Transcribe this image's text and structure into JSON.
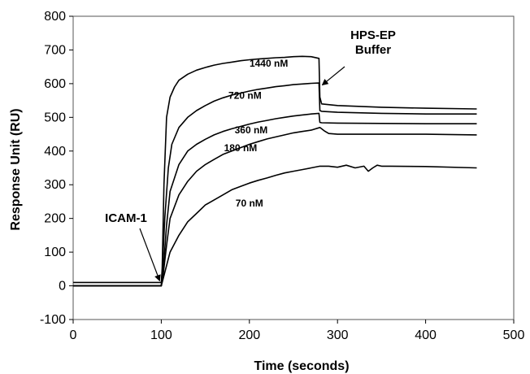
{
  "chart_data": {
    "type": "line",
    "title": "",
    "xlabel": "Time (seconds)",
    "ylabel": "Response Unit (RU)",
    "xlim": [
      0,
      500
    ],
    "ylim": [
      -100,
      800
    ],
    "xticks": [
      0,
      100,
      200,
      300,
      400,
      500
    ],
    "yticks": [
      -100,
      0,
      100,
      200,
      300,
      400,
      500,
      600,
      700,
      800
    ],
    "grid": false,
    "legend": "none",
    "line_color": "#000000",
    "series": [
      {
        "name": "1440 nM",
        "x": [
          0,
          100,
          101,
          103,
          106,
          110,
          115,
          120,
          130,
          140,
          150,
          160,
          170,
          180,
          190,
          200,
          210,
          220,
          230,
          240,
          250,
          260,
          270,
          279,
          280,
          282,
          300,
          350,
          400,
          458
        ],
        "y": [
          10,
          10,
          50,
          300,
          500,
          560,
          590,
          610,
          628,
          640,
          648,
          655,
          660,
          664,
          668,
          671,
          673,
          675,
          677,
          678,
          680,
          681,
          680,
          675,
          560,
          540,
          535,
          530,
          527,
          525
        ]
      },
      {
        "name": "720 nM",
        "x": [
          0,
          100,
          101,
          104,
          108,
          112,
          120,
          130,
          140,
          150,
          160,
          170,
          180,
          190,
          200,
          210,
          220,
          230,
          240,
          250,
          260,
          270,
          279,
          280,
          282,
          300,
          350,
          400,
          458
        ],
        "y": [
          0,
          0,
          40,
          200,
          350,
          420,
          470,
          500,
          520,
          535,
          548,
          558,
          566,
          572,
          578,
          583,
          587,
          591,
          594,
          597,
          599,
          601,
          602,
          520,
          518,
          515,
          512,
          510,
          510
        ]
      },
      {
        "name": "360 nM",
        "x": [
          0,
          100,
          102,
          106,
          110,
          120,
          130,
          140,
          150,
          160,
          170,
          180,
          190,
          200,
          210,
          220,
          230,
          240,
          250,
          260,
          270,
          279,
          280,
          282,
          300,
          350,
          400,
          458
        ],
        "y": [
          0,
          0,
          40,
          180,
          280,
          360,
          400,
          420,
          435,
          448,
          458,
          466,
          473,
          480,
          486,
          491,
          496,
          500,
          504,
          507,
          510,
          512,
          485,
          484,
          483,
          482,
          481,
          481
        ]
      },
      {
        "name": "180 nM",
        "x": [
          0,
          100,
          102,
          106,
          110,
          120,
          130,
          140,
          150,
          160,
          170,
          180,
          190,
          200,
          210,
          220,
          230,
          240,
          250,
          260,
          270,
          280,
          285,
          290,
          300,
          350,
          400,
          458
        ],
        "y": [
          0,
          0,
          30,
          120,
          200,
          270,
          310,
          340,
          360,
          375,
          390,
          400,
          410,
          420,
          428,
          436,
          442,
          448,
          454,
          458,
          462,
          470,
          460,
          452,
          450,
          450,
          450,
          448
        ]
      },
      {
        "name": "70 nM",
        "x": [
          0,
          100,
          102,
          106,
          110,
          120,
          130,
          140,
          150,
          160,
          170,
          180,
          190,
          200,
          210,
          220,
          230,
          240,
          250,
          260,
          270,
          280,
          290,
          300,
          310,
          320,
          330,
          335,
          340,
          345,
          350,
          360,
          400,
          458
        ],
        "y": [
          0,
          0,
          20,
          60,
          100,
          150,
          190,
          215,
          240,
          255,
          270,
          285,
          295,
          305,
          313,
          320,
          328,
          335,
          340,
          345,
          350,
          355,
          355,
          352,
          358,
          350,
          355,
          340,
          350,
          358,
          355,
          355,
          354,
          350
        ]
      }
    ],
    "annotations": [
      {
        "text": "ICAM-1",
        "arrow_to": [
          100,
          20
        ]
      },
      {
        "text": "HPS-EP\nBuffer",
        "arrow_to": [
          280,
          560
        ]
      }
    ]
  }
}
